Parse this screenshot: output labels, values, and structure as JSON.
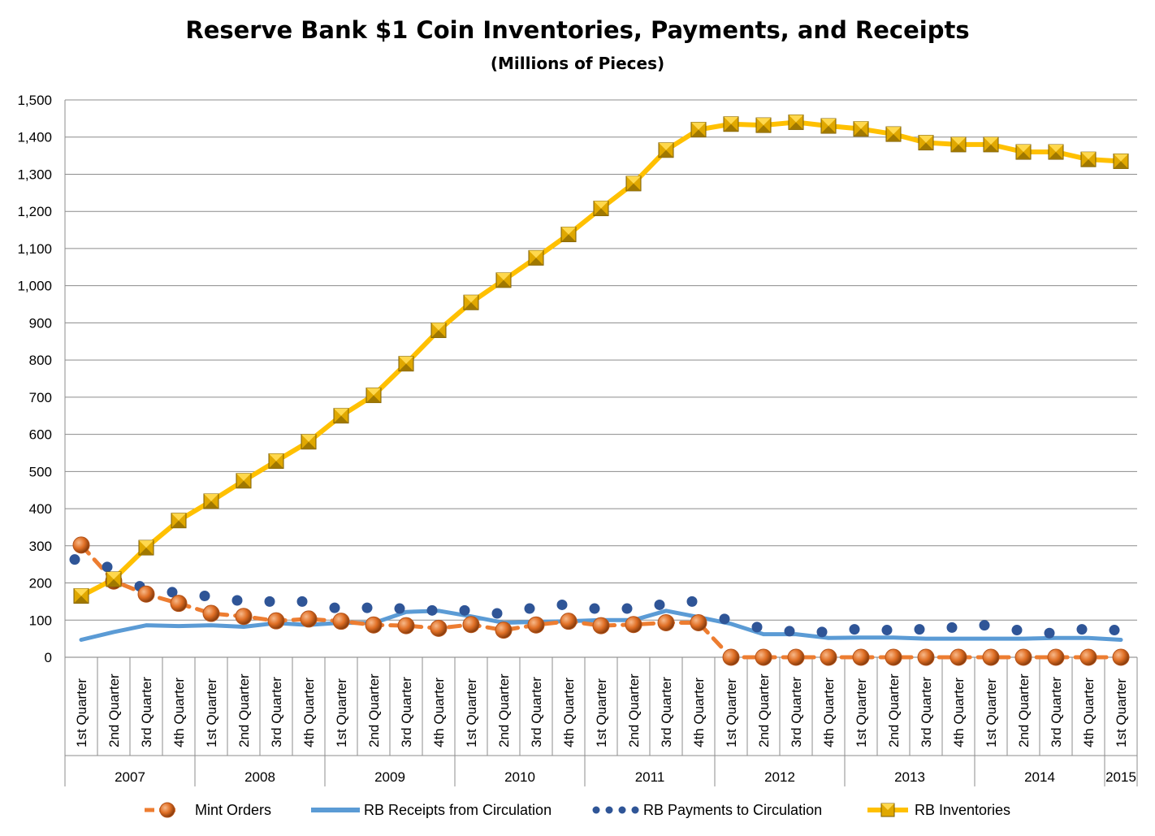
{
  "chart_data": {
    "type": "line",
    "title": "Reserve Bank $1 Coin Inventories, Payments, and Receipts",
    "subtitle": "(Millions of Pieces)",
    "ylim": [
      0,
      1500
    ],
    "yticks": [
      "0",
      "100",
      "200",
      "300",
      "400",
      "500",
      "600",
      "700",
      "800",
      "900",
      "1,000",
      "1,100",
      "1,200",
      "1,300",
      "1,400",
      "1,500"
    ],
    "grid": "horizontal",
    "legend_position": "bottom",
    "categories": [
      "1st Quarter",
      "2nd Quarter",
      "3rd Quarter",
      "4th Quarter",
      "1st Quarter",
      "2nd Quarter",
      "3rd Quarter",
      "4th Quarter",
      "1st Quarter",
      "2nd Quarter",
      "3rd Quarter",
      "4th Quarter",
      "1st Quarter",
      "2nd Quarter",
      "3rd Quarter",
      "4th Quarter",
      "1st Quarter",
      "2nd Quarter",
      "3rd Quarter",
      "4th Quarter",
      "1st Quarter",
      "2nd Quarter",
      "3rd Quarter",
      "4th Quarter",
      "1st Quarter",
      "2nd Quarter",
      "3rd Quarter",
      "4th Quarter",
      "1st Quarter",
      "2nd Quarter",
      "3rd Quarter",
      "4th Quarter",
      "1st Quarter"
    ],
    "year_groups": [
      {
        "label": "2007",
        "count": 4
      },
      {
        "label": "2008",
        "count": 4
      },
      {
        "label": "2009",
        "count": 4
      },
      {
        "label": "2010",
        "count": 4
      },
      {
        "label": "2011",
        "count": 4
      },
      {
        "label": "2012",
        "count": 4
      },
      {
        "label": "2013",
        "count": 4
      },
      {
        "label": "2014",
        "count": 4
      },
      {
        "label": "2015",
        "count": 1
      }
    ],
    "series": [
      {
        "name": "Mint Orders",
        "color": "#ED7D31",
        "style": "dashed-circle",
        "values": [
          302,
          205,
          170,
          145,
          118,
          110,
          98,
          103,
          97,
          87,
          85,
          78,
          88,
          73,
          87,
          97,
          85,
          88,
          93,
          93,
          0,
          0,
          0,
          0,
          0,
          0,
          0,
          0,
          0,
          0,
          0,
          0,
          0
        ]
      },
      {
        "name": "RB Receipts from Circulation",
        "color": "#5B9BD5",
        "style": "solid",
        "values": [
          47,
          68,
          86,
          84,
          86,
          82,
          92,
          87,
          93,
          92,
          122,
          125,
          110,
          93,
          95,
          97,
          100,
          100,
          125,
          108,
          90,
          62,
          62,
          52,
          53,
          53,
          50,
          50,
          50,
          50,
          52,
          52,
          47
        ]
      },
      {
        "name": "RB Payments to Circulation",
        "color": "#2F5597",
        "style": "dotted",
        "values": [
          250,
          230,
          178,
          162,
          152,
          140,
          137,
          137,
          120,
          120,
          118,
          113,
          113,
          105,
          118,
          128,
          118,
          118,
          128,
          137,
          90,
          68,
          57,
          55,
          62,
          60,
          62,
          67,
          73,
          60,
          52,
          62,
          60
        ]
      },
      {
        "name": "RB Inventories",
        "color": "#FFC000",
        "style": "solid-square",
        "values": [
          165,
          210,
          295,
          368,
          420,
          475,
          528,
          580,
          650,
          705,
          790,
          880,
          955,
          1015,
          1075,
          1138,
          1208,
          1275,
          1365,
          1420,
          1435,
          1432,
          1440,
          1430,
          1422,
          1408,
          1385,
          1380,
          1380,
          1360,
          1360,
          1340,
          1335
        ]
      }
    ]
  }
}
